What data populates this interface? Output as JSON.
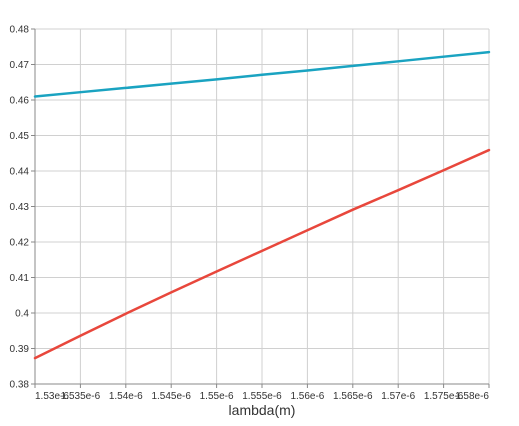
{
  "chart_data": {
    "type": "line",
    "title": "",
    "xlabel": "lambda(m)",
    "ylabel": "",
    "grid": true,
    "legend": "none",
    "xlim": [
      1.53e-06,
      1.58e-06
    ],
    "ylim": [
      0.38,
      0.48
    ],
    "xticks": [
      1.53e-06,
      1.535e-06,
      1.54e-06,
      1.545e-06,
      1.55e-06,
      1.555e-06,
      1.56e-06,
      1.565e-06,
      1.57e-06,
      1.575e-06,
      1.58e-06
    ],
    "xtick_labels": [
      "1.53e-6",
      "1.535e-6",
      "1.54e-6",
      "1.545e-6",
      "1.55e-6",
      "1.555e-6",
      "1.56e-6",
      "1.565e-6",
      "1.57e-6",
      "1.575e-6",
      "1.58e-6"
    ],
    "yticks": [
      0.38,
      0.39,
      0.4,
      0.41,
      0.42,
      0.43,
      0.44,
      0.45,
      0.46,
      0.47,
      0.48
    ],
    "ytick_labels": [
      "0.38",
      "0.39",
      "0.4",
      "0.41",
      "0.42",
      "0.43",
      "0.44",
      "0.45",
      "0.46",
      "0.47",
      "0.48"
    ],
    "series": [
      {
        "color": "#1aa3c1",
        "x": [
          1.53e-06,
          1.535e-06,
          1.54e-06,
          1.545e-06,
          1.55e-06,
          1.555e-06,
          1.56e-06,
          1.565e-06,
          1.57e-06,
          1.575e-06,
          1.58e-06
        ],
        "values": [
          0.461,
          0.4622,
          0.4634,
          0.4646,
          0.4658,
          0.4671,
          0.4683,
          0.4696,
          0.4709,
          0.4722,
          0.4735
        ]
      },
      {
        "color": "#e8473c",
        "x": [
          1.53e-06,
          1.535e-06,
          1.54e-06,
          1.545e-06,
          1.55e-06,
          1.555e-06,
          1.56e-06,
          1.565e-06,
          1.57e-06,
          1.575e-06,
          1.58e-06
        ],
        "values": [
          0.3873,
          0.3936,
          0.3998,
          0.4058,
          0.4117,
          0.4175,
          0.4233,
          0.4291,
          0.4346,
          0.4402,
          0.4459
        ]
      }
    ]
  }
}
